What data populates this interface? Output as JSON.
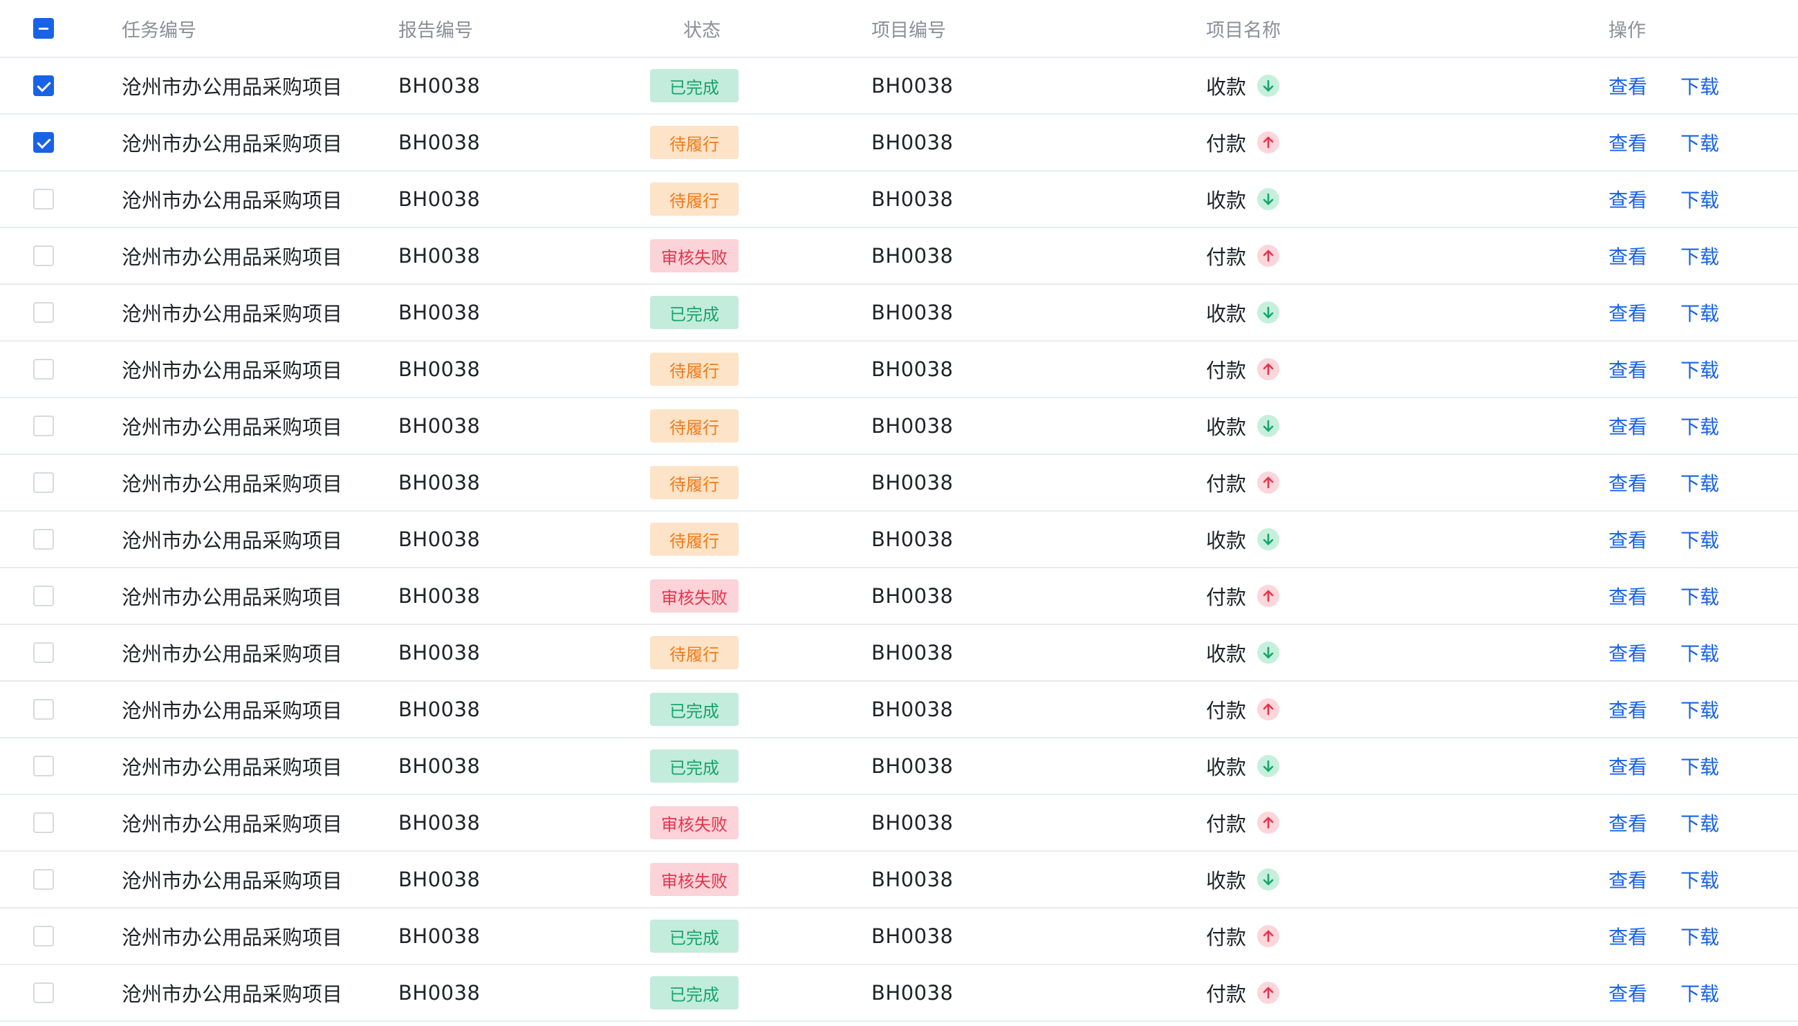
{
  "colors": {
    "accent": "#1862e6",
    "done": "#17a36b",
    "pending": "#f07a18",
    "failed": "#e5344c"
  },
  "header": {
    "task_no": "任务编号",
    "report_no": "报告编号",
    "status": "状态",
    "project_no": "项目编号",
    "project_name": "项目名称",
    "actions": "操作",
    "select_all_state": "indeterminate"
  },
  "rows": [
    {
      "checked": true,
      "task": "沧州市办公用品采购项目",
      "report": "BH0038",
      "status": "已完成",
      "status_type": "done",
      "project": "BH0038",
      "name": "收款",
      "direction": "in"
    },
    {
      "checked": true,
      "task": "沧州市办公用品采购项目",
      "report": "BH0038",
      "status": "待履行",
      "status_type": "pending",
      "project": "BH0038",
      "name": "付款",
      "direction": "out"
    },
    {
      "checked": false,
      "task": "沧州市办公用品采购项目",
      "report": "BH0038",
      "status": "待履行",
      "status_type": "pending",
      "project": "BH0038",
      "name": "收款",
      "direction": "in"
    },
    {
      "checked": false,
      "task": "沧州市办公用品采购项目",
      "report": "BH0038",
      "status": "审核失败",
      "status_type": "failed",
      "project": "BH0038",
      "name": "付款",
      "direction": "out"
    },
    {
      "checked": false,
      "task": "沧州市办公用品采购项目",
      "report": "BH0038",
      "status": "已完成",
      "status_type": "done",
      "project": "BH0038",
      "name": "收款",
      "direction": "in"
    },
    {
      "checked": false,
      "task": "沧州市办公用品采购项目",
      "report": "BH0038",
      "status": "待履行",
      "status_type": "pending",
      "project": "BH0038",
      "name": "付款",
      "direction": "out"
    },
    {
      "checked": false,
      "task": "沧州市办公用品采购项目",
      "report": "BH0038",
      "status": "待履行",
      "status_type": "pending",
      "project": "BH0038",
      "name": "收款",
      "direction": "in"
    },
    {
      "checked": false,
      "task": "沧州市办公用品采购项目",
      "report": "BH0038",
      "status": "待履行",
      "status_type": "pending",
      "project": "BH0038",
      "name": "付款",
      "direction": "out"
    },
    {
      "checked": false,
      "task": "沧州市办公用品采购项目",
      "report": "BH0038",
      "status": "待履行",
      "status_type": "pending",
      "project": "BH0038",
      "name": "收款",
      "direction": "in"
    },
    {
      "checked": false,
      "task": "沧州市办公用品采购项目",
      "report": "BH0038",
      "status": "审核失败",
      "status_type": "failed",
      "project": "BH0038",
      "name": "付款",
      "direction": "out"
    },
    {
      "checked": false,
      "task": "沧州市办公用品采购项目",
      "report": "BH0038",
      "status": "待履行",
      "status_type": "pending",
      "project": "BH0038",
      "name": "收款",
      "direction": "in"
    },
    {
      "checked": false,
      "task": "沧州市办公用品采购项目",
      "report": "BH0038",
      "status": "已完成",
      "status_type": "done",
      "project": "BH0038",
      "name": "付款",
      "direction": "out"
    },
    {
      "checked": false,
      "task": "沧州市办公用品采购项目",
      "report": "BH0038",
      "status": "已完成",
      "status_type": "done",
      "project": "BH0038",
      "name": "收款",
      "direction": "in"
    },
    {
      "checked": false,
      "task": "沧州市办公用品采购项目",
      "report": "BH0038",
      "status": "审核失败",
      "status_type": "failed",
      "project": "BH0038",
      "name": "付款",
      "direction": "out"
    },
    {
      "checked": false,
      "task": "沧州市办公用品采购项目",
      "report": "BH0038",
      "status": "审核失败",
      "status_type": "failed",
      "project": "BH0038",
      "name": "收款",
      "direction": "in"
    },
    {
      "checked": false,
      "task": "沧州市办公用品采购项目",
      "report": "BH0038",
      "status": "已完成",
      "status_type": "done",
      "project": "BH0038",
      "name": "付款",
      "direction": "out"
    },
    {
      "checked": false,
      "task": "沧州市办公用品采购项目",
      "report": "BH0038",
      "status": "已完成",
      "status_type": "done",
      "project": "BH0038",
      "name": "付款",
      "direction": "out"
    }
  ],
  "actions": {
    "view": "查看",
    "download": "下载"
  }
}
